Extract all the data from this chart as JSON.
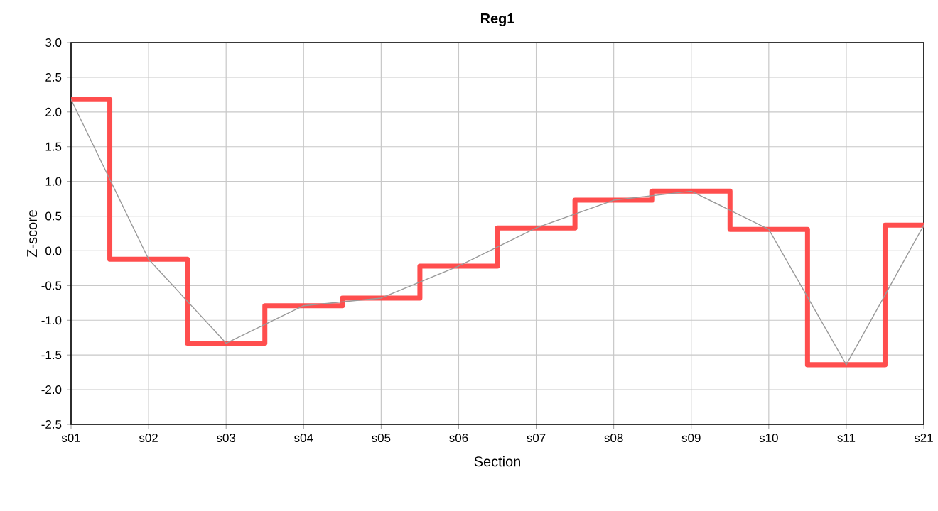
{
  "chart_data": {
    "type": "step",
    "title": "Reg1",
    "xlabel": "Section",
    "ylabel": "Z-score",
    "categories": [
      "s01",
      "s02",
      "s03",
      "s04",
      "s05",
      "s06",
      "s07",
      "s08",
      "s09",
      "s10",
      "s11",
      "s21"
    ],
    "series": [
      {
        "color": "#ff4444",
        "values": [
          2.18,
          -0.12,
          -1.33,
          -0.79,
          -0.68,
          -0.22,
          0.33,
          0.73,
          0.86,
          0.31,
          -1.64,
          0.37
        ]
      },
      {
        "type": "line",
        "color": "#999999",
        "values": [
          2.18,
          -0.12,
          -1.33,
          -0.79,
          -0.68,
          -0.22,
          0.33,
          0.73,
          0.86,
          0.31,
          -1.64,
          0.37
        ]
      }
    ],
    "ylim": [
      -2.5,
      3.0
    ],
    "yticks": [
      -2.5,
      {
        "value": -2.0,
        "label": "-2.0"
      },
      -1.5,
      {
        "value": -1.0,
        "label": "-1.0"
      },
      -0.5,
      {
        "value": 0,
        "label": "0.0"
      },
      0.5,
      {
        "value": 1.0,
        "label": "1.0"
      },
      1.5,
      {
        "value": 2.0,
        "label": "2.0"
      },
      2.5,
      {
        "value": 3.0,
        "label": "3.0"
      }
    ],
    "grid": true,
    "line_style": "solid",
    "marker": "none"
  }
}
